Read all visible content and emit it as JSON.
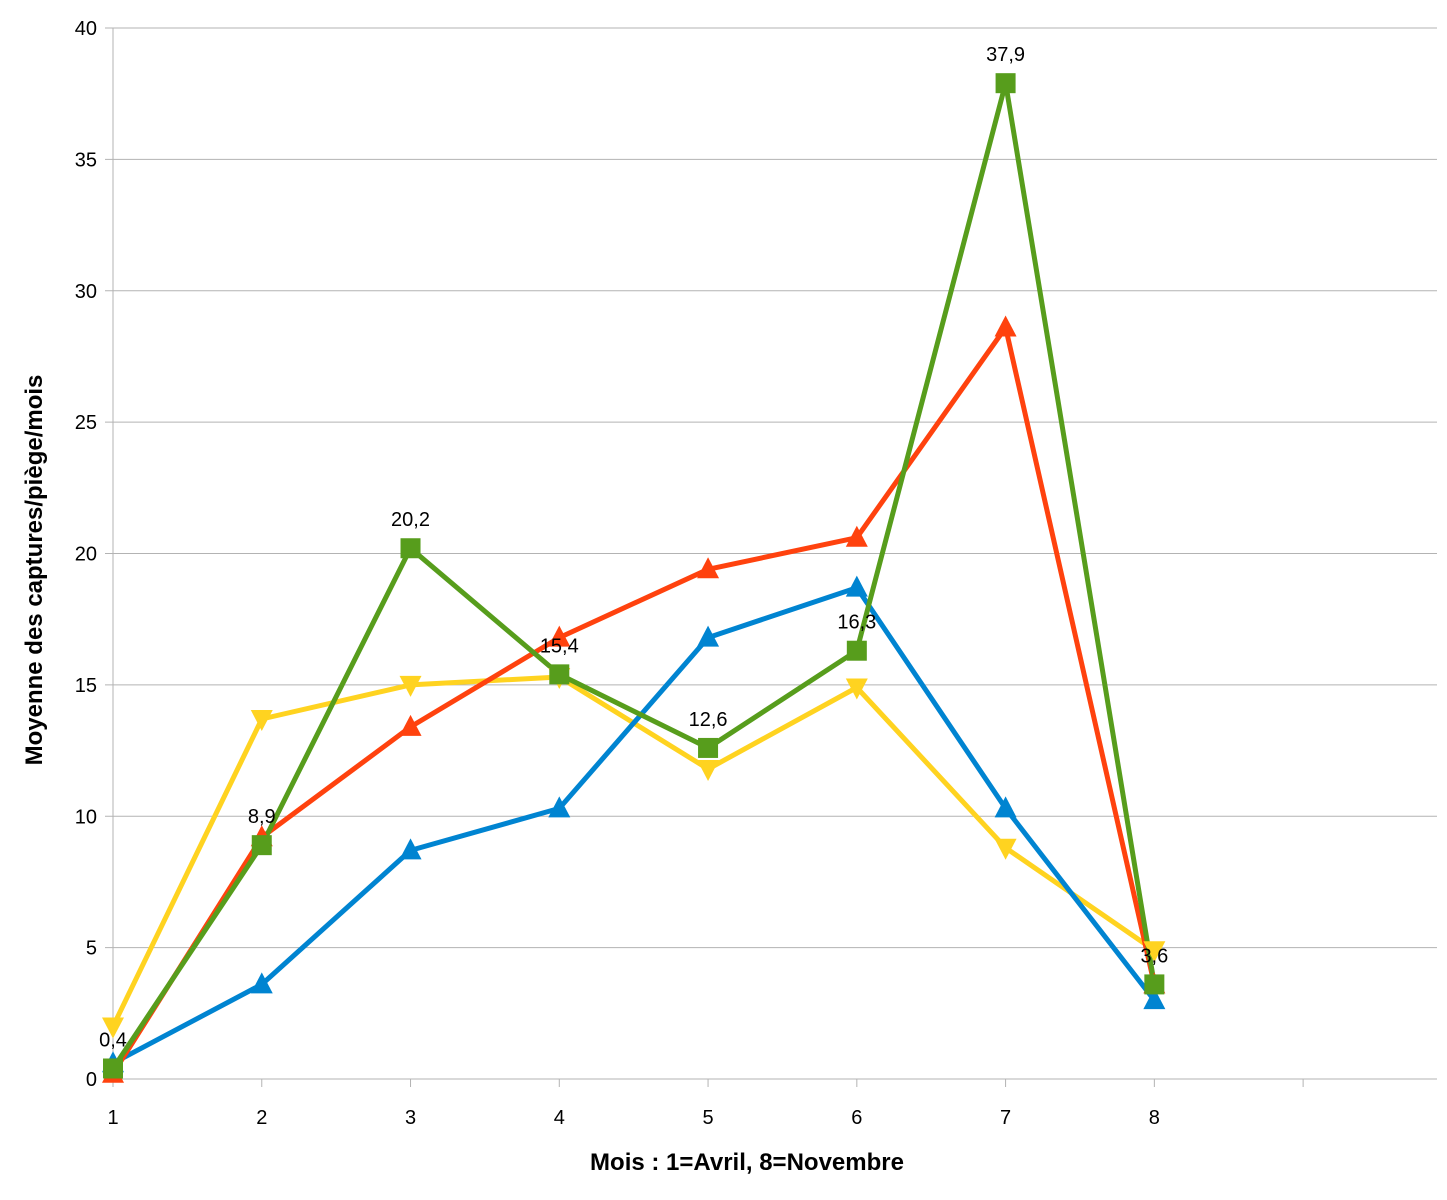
{
  "chart_data": {
    "type": "line",
    "x": [
      1,
      2,
      3,
      4,
      5,
      6,
      7,
      8
    ],
    "xticks": [
      "1",
      "2",
      "3",
      "4",
      "5",
      "6",
      "7",
      "8"
    ],
    "xlim": [
      1,
      9.9
    ],
    "ylim": [
      0,
      40
    ],
    "yticks": [
      0,
      5,
      10,
      15,
      20,
      25,
      30,
      35,
      40
    ],
    "xlabel": "Mois : 1=Avril, 8=Novembre",
    "ylabel": "Moyenne des captures/piège/mois",
    "grid": true,
    "legend": "none",
    "series": [
      {
        "color": "#ffd320",
        "marker": "triangle-down",
        "values": [
          2.0,
          13.7,
          15.0,
          15.3,
          11.8,
          14.9,
          8.8,
          4.9
        ]
      },
      {
        "color": "#0084d1",
        "marker": "triangle-up",
        "values": [
          0.6,
          3.6,
          8.7,
          10.3,
          16.8,
          18.7,
          10.3,
          3.0
        ]
      },
      {
        "color": "#ff420e",
        "marker": "triangle-up",
        "values": [
          0.2,
          9.2,
          13.4,
          16.8,
          19.4,
          20.6,
          28.6,
          3.6
        ]
      },
      {
        "color": "#579d1c",
        "marker": "square",
        "values": [
          0.4,
          8.9,
          20.2,
          15.4,
          12.6,
          16.3,
          37.9,
          3.6
        ],
        "data_labels": [
          "0,4",
          "8,9",
          "20,2",
          "15,4",
          "12,6",
          "16,3",
          "37,9",
          "3,6"
        ]
      }
    ]
  }
}
